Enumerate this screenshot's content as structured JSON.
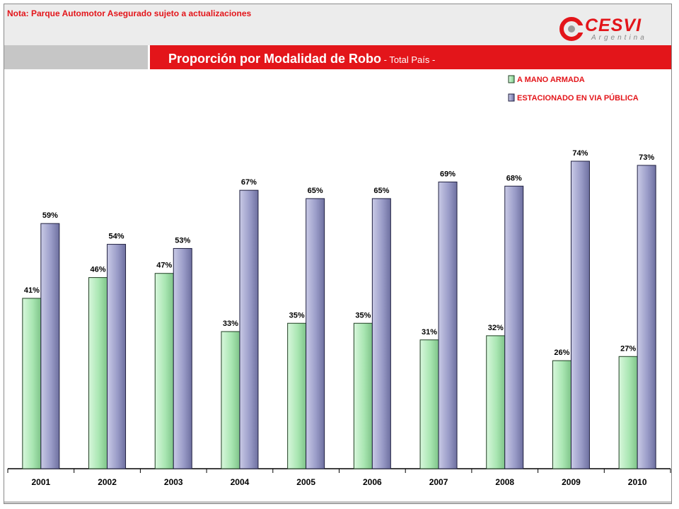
{
  "header": {
    "note": "Nota: Parque Automotor Asegurado sujeto a actualizaciones",
    "logo": {
      "name": "CESVI",
      "sub": "Argentina"
    },
    "title_main": "Proporción por Modalidad de Robo",
    "title_sub": " - Total País -"
  },
  "colors": {
    "accent": "#e3151a",
    "series1": "#a9e6b2",
    "series2": "#9a9cc8"
  },
  "chart_data": {
    "type": "bar",
    "categories": [
      "2001",
      "2002",
      "2003",
      "2004",
      "2005",
      "2006",
      "2007",
      "2008",
      "2009",
      "2010"
    ],
    "series": [
      {
        "name": "A MANO ARMADA",
        "values": [
          41,
          46,
          47,
          33,
          35,
          35,
          31,
          32,
          26,
          27
        ],
        "color": "#a9e6b2"
      },
      {
        "name": "ESTACIONADO EN VIA PÚBLICA",
        "values": [
          59,
          54,
          53,
          67,
          65,
          65,
          69,
          68,
          74,
          73
        ],
        "color": "#9a9cc8"
      }
    ],
    "value_suffix": "%",
    "ylim": [
      0,
      80
    ],
    "legend_position": "top-right",
    "grid": false
  }
}
